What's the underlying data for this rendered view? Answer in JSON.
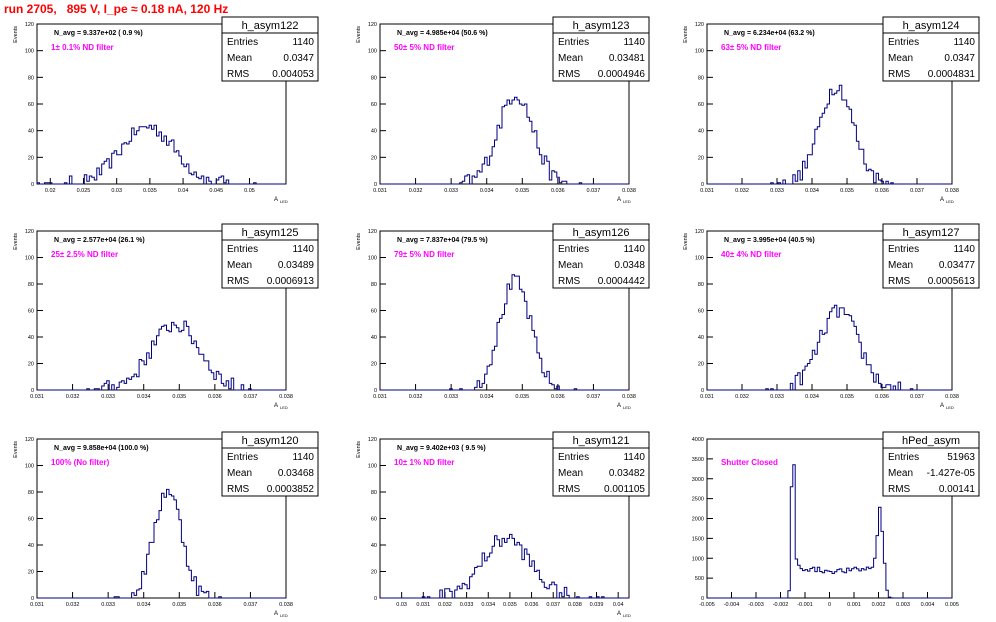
{
  "page_title": "run 2705,   895 V, I_pe ≈ 0.18 nA, 120 Hz",
  "chart_data": [
    {
      "type": "bar",
      "style": "histogram",
      "title": "h_asym122",
      "ylabel": "Events",
      "xlabel": "A",
      "xlabel_sub": "LED",
      "xlim": [
        0.018,
        0.0555
      ],
      "ylim": [
        0,
        120
      ],
      "xticks": [
        0.02,
        0.025,
        0.03,
        0.035,
        0.04,
        0.045,
        0.05
      ],
      "xtick_labels": [
        "0.02",
        "0.025",
        "0.03",
        "0.035",
        "0.04",
        "0.045",
        "0.05"
      ],
      "yticks": [
        0,
        20,
        40,
        60,
        80,
        100,
        120
      ],
      "stats": {
        "Entries": "1140",
        "Mean": "0.0347",
        "RMS": "0.004053"
      },
      "navg": "N_avg = 9.337e+02 ( 0.9 %)",
      "filter": "1± 0.1% ND filter",
      "peak": {
        "center": 0.0347,
        "sigma": 0.00405,
        "height": 43,
        "noise": 5
      }
    },
    {
      "type": "bar",
      "style": "histogram",
      "title": "h_asym123",
      "ylabel": "Events",
      "xlabel": "A",
      "xlabel_sub": "LED",
      "xlim": [
        0.031,
        0.038
      ],
      "ylim": [
        0,
        120
      ],
      "xticks": [
        0.031,
        0.032,
        0.033,
        0.034,
        0.035,
        0.036,
        0.037,
        0.038
      ],
      "xtick_labels": [
        "0.031",
        "0.032",
        "0.033",
        "0.034",
        "0.035",
        "0.036",
        "0.037",
        "0.038"
      ],
      "yticks": [
        0,
        20,
        40,
        60,
        80,
        100,
        120
      ],
      "stats": {
        "Entries": "1140",
        "Mean": "0.03481",
        "RMS": "0.0004946"
      },
      "navg": "N_avg = 4.985e+04 (50.6 %)",
      "filter": "50± 5% ND filter",
      "peak": {
        "center": 0.03481,
        "sigma": 0.00049,
        "height": 68,
        "noise": 6
      }
    },
    {
      "type": "bar",
      "style": "histogram",
      "title": "h_asym124",
      "ylabel": "Events",
      "xlabel": "A",
      "xlabel_sub": "LED",
      "xlim": [
        0.031,
        0.038
      ],
      "ylim": [
        0,
        120
      ],
      "xticks": [
        0.031,
        0.032,
        0.033,
        0.034,
        0.035,
        0.036,
        0.037,
        0.038
      ],
      "xtick_labels": [
        "0.031",
        "0.032",
        "0.033",
        "0.034",
        "0.035",
        "0.036",
        "0.037",
        "0.038"
      ],
      "yticks": [
        0,
        20,
        40,
        60,
        80,
        100,
        120
      ],
      "stats": {
        "Entries": "1140",
        "Mean": "0.0347",
        "RMS": "0.0004831"
      },
      "navg": "N_avg = 6.234e+04 (63.2 %)",
      "filter": "63± 5% ND filter",
      "peak": {
        "center": 0.0347,
        "sigma": 0.00048,
        "height": 74,
        "noise": 6
      }
    },
    {
      "type": "bar",
      "style": "histogram",
      "title": "h_asym125",
      "ylabel": "Events",
      "xlabel": "A",
      "xlabel_sub": "LED",
      "xlim": [
        0.031,
        0.038
      ],
      "ylim": [
        0,
        120
      ],
      "xticks": [
        0.031,
        0.032,
        0.033,
        0.034,
        0.035,
        0.036,
        0.037,
        0.038
      ],
      "xtick_labels": [
        "0.031",
        "0.032",
        "0.033",
        "0.034",
        "0.035",
        "0.036",
        "0.037",
        "0.038"
      ],
      "yticks": [
        0,
        20,
        40,
        60,
        80,
        100,
        120
      ],
      "stats": {
        "Entries": "1140",
        "Mean": "0.03489",
        "RMS": "0.0006913"
      },
      "navg": "N_avg = 2.577e+04 (26.1 %)",
      "filter": "25± 2.5% ND filter",
      "peak": {
        "center": 0.03489,
        "sigma": 0.00069,
        "height": 50,
        "noise": 6
      }
    },
    {
      "type": "bar",
      "style": "histogram",
      "title": "h_asym126",
      "ylabel": "Events",
      "xlabel": "A",
      "xlabel_sub": "LED",
      "xlim": [
        0.031,
        0.038
      ],
      "ylim": [
        0,
        120
      ],
      "xticks": [
        0.031,
        0.032,
        0.033,
        0.034,
        0.035,
        0.036,
        0.037,
        0.038
      ],
      "xtick_labels": [
        "0.031",
        "0.032",
        "0.033",
        "0.034",
        "0.035",
        "0.036",
        "0.037",
        "0.038"
      ],
      "yticks": [
        0,
        20,
        40,
        60,
        80,
        100,
        120
      ],
      "stats": {
        "Entries": "1140",
        "Mean": "0.0348",
        "RMS": "0.0004442"
      },
      "navg": "N_avg = 7.837e+04 (79.5 %)",
      "filter": "79± 5% ND filter",
      "peak": {
        "center": 0.0348,
        "sigma": 0.00044,
        "height": 82,
        "noise": 6
      }
    },
    {
      "type": "bar",
      "style": "histogram",
      "title": "h_asym127",
      "ylabel": "Events",
      "xlabel": "A",
      "xlabel_sub": "LED",
      "xlim": [
        0.031,
        0.038
      ],
      "ylim": [
        0,
        120
      ],
      "xticks": [
        0.031,
        0.032,
        0.033,
        0.034,
        0.035,
        0.036,
        0.037,
        0.038
      ],
      "xtick_labels": [
        "0.031",
        "0.032",
        "0.033",
        "0.034",
        "0.035",
        "0.036",
        "0.037",
        "0.038"
      ],
      "yticks": [
        0,
        20,
        40,
        60,
        80,
        100,
        120
      ],
      "stats": {
        "Entries": "1140",
        "Mean": "0.03477",
        "RMS": "0.0005613"
      },
      "navg": "N_avg = 3.995e+04 (40.5 %)",
      "filter": "40± 4% ND filter",
      "peak": {
        "center": 0.03477,
        "sigma": 0.00056,
        "height": 60,
        "noise": 6
      }
    },
    {
      "type": "bar",
      "style": "histogram",
      "title": "h_asym120",
      "ylabel": "Events",
      "xlabel": "A",
      "xlabel_sub": "LED",
      "xlim": [
        0.031,
        0.038
      ],
      "ylim": [
        0,
        120
      ],
      "xticks": [
        0.031,
        0.032,
        0.033,
        0.034,
        0.035,
        0.036,
        0.037,
        0.038
      ],
      "xtick_labels": [
        "0.031",
        "0.032",
        "0.033",
        "0.034",
        "0.035",
        "0.036",
        "0.037",
        "0.038"
      ],
      "yticks": [
        0,
        20,
        40,
        60,
        80,
        100,
        120
      ],
      "stats": {
        "Entries": "1140",
        "Mean": "0.03468",
        "RMS": "0.0003852"
      },
      "navg": "N_avg = 9.858e+04 (100.0 %)",
      "filter": "100% (No filter)",
      "peak": {
        "center": 0.03468,
        "sigma": 0.00039,
        "height": 82,
        "noise": 6
      }
    },
    {
      "type": "bar",
      "style": "histogram",
      "title": "h_asym121",
      "ylabel": "Events",
      "xlabel": "A",
      "xlabel_sub": "LED",
      "xlim": [
        0.029,
        0.0405
      ],
      "ylim": [
        0,
        120
      ],
      "xticks": [
        0.03,
        0.031,
        0.032,
        0.033,
        0.034,
        0.035,
        0.036,
        0.037,
        0.038,
        0.039,
        0.04
      ],
      "xtick_labels": [
        "0.03",
        "0.031",
        "0.032",
        "0.033",
        "0.034",
        "0.035",
        "0.036",
        "0.037",
        "0.038",
        "0.039",
        "0.04"
      ],
      "yticks": [
        0,
        20,
        40,
        60,
        80,
        100,
        120
      ],
      "stats": {
        "Entries": "1140",
        "Mean": "0.03482",
        "RMS": "0.001105"
      },
      "navg": "N_avg = 9.402e+03 ( 9.5 %)",
      "filter": "10± 1% ND filter",
      "peak": {
        "center": 0.03482,
        "sigma": 0.0011,
        "height": 45,
        "noise": 6
      }
    },
    {
      "type": "bar",
      "style": "histogram",
      "title": "hPed_asym",
      "ylabel": "",
      "xlabel": "",
      "xlabel_sub": "",
      "xlim": [
        -0.005,
        0.005
      ],
      "ylim": [
        0,
        4000
      ],
      "xticks": [
        -0.005,
        -0.004,
        -0.003,
        -0.002,
        -0.001,
        0,
        0.001,
        0.002,
        0.003,
        0.004,
        0.005
      ],
      "xtick_labels": [
        "-0.005",
        "-0.004",
        "-0.003",
        "-0.002",
        "-0.001",
        "0",
        "0.001",
        "0.002",
        "0.003",
        "0.004",
        "0.005"
      ],
      "yticks": [
        0,
        500,
        1000,
        1500,
        2000,
        2500,
        3000,
        3500,
        4000
      ],
      "stats": {
        "Entries": "51963",
        "Mean": "-1.427e-05",
        "RMS": "0.00141"
      },
      "navg": "",
      "filter": "Shutter Closed",
      "ped": {
        "left": -0.0015,
        "right": 0.0021,
        "left_height": 3900,
        "right_height": 1800,
        "plateau": 800
      }
    }
  ]
}
